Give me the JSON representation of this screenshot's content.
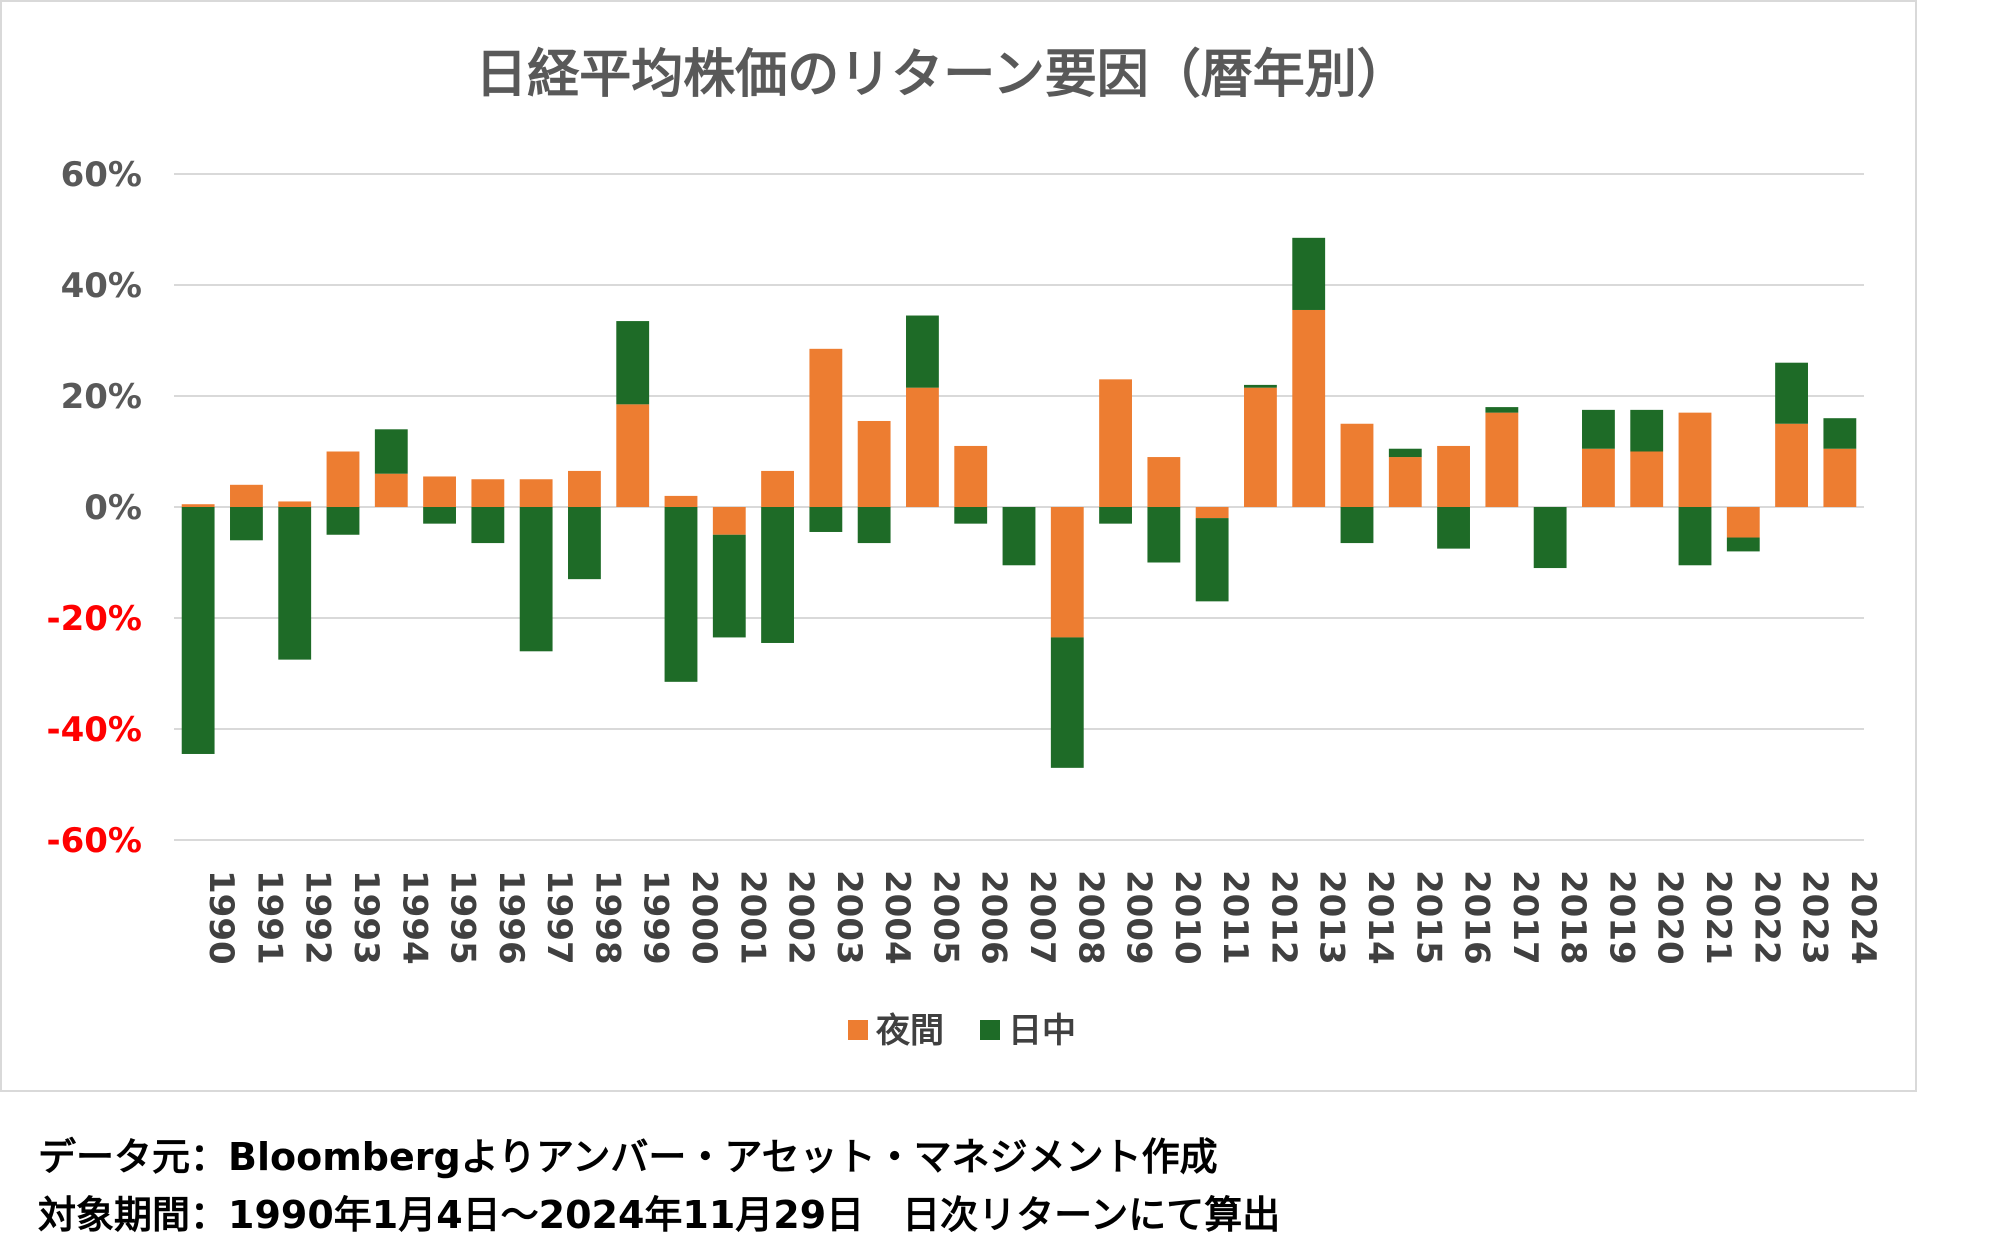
{
  "chart_data": {
    "type": "bar",
    "stacked": true,
    "title": "日経平均株価のリターン要因（暦年別）",
    "categories": [
      "1990",
      "1991",
      "1992",
      "1993",
      "1994",
      "1995",
      "1996",
      "1997",
      "1998",
      "1999",
      "2000",
      "2001",
      "2002",
      "2003",
      "2004",
      "2005",
      "2006",
      "2007",
      "2008",
      "2009",
      "2010",
      "2011",
      "2012",
      "2013",
      "2014",
      "2015",
      "2016",
      "2017",
      "2018",
      "2019",
      "2020",
      "2021",
      "2022",
      "2023",
      "2024"
    ],
    "series": [
      {
        "name": "夜間",
        "color": "#ED7D31",
        "values": [
          0.5,
          4,
          1,
          10,
          6,
          5.5,
          5,
          5,
          6.5,
          18.5,
          2,
          -5,
          6.5,
          28.5,
          15.5,
          21.5,
          11,
          0,
          -23.5,
          23,
          9,
          -2,
          21.5,
          35.5,
          15,
          9,
          11,
          17,
          0,
          10.5,
          10,
          17,
          -5.5,
          15,
          10.5
        ]
      },
      {
        "name": "日中",
        "color": "#1E6B27",
        "values": [
          -44.5,
          -6,
          -27.5,
          -5,
          8,
          -3,
          -6.5,
          -26,
          -13,
          15,
          -31.5,
          -18.5,
          -24.5,
          -4.5,
          -6.5,
          13,
          -3,
          -10.5,
          -23.5,
          -3,
          -10,
          -15,
          0.5,
          13,
          -6.5,
          1.5,
          -7.5,
          1,
          -11,
          7,
          7.5,
          -10.5,
          -2.5,
          11,
          5.5
        ]
      }
    ],
    "ylim": [
      -60,
      60
    ],
    "yticks": [
      "-60%",
      "-40%",
      "-20%",
      "0%",
      "20%",
      "40%",
      "60%"
    ],
    "ytick_values": [
      -60,
      -40,
      -20,
      0,
      20,
      40,
      60
    ],
    "negative_tick_color": "#FF0000",
    "positive_tick_color": "#595959",
    "grid": true,
    "legend_position": "bottom"
  },
  "footnote": {
    "line1": "データ元：Bloombergよりアンバー・アセット・マネジメント作成",
    "line2": "対象期間：1990年1月4日～2024年11月29日　日次リターンにて算出"
  }
}
